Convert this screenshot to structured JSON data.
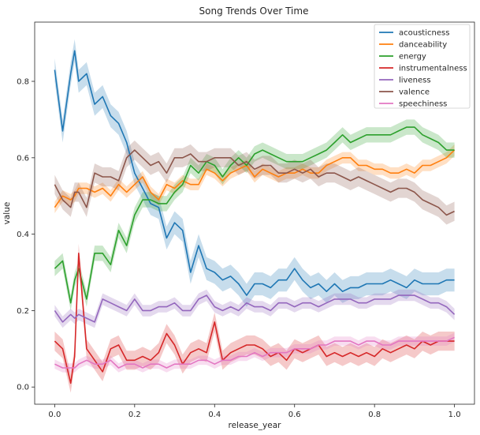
{
  "chart_data": {
    "type": "line",
    "title": "Song Trends Over Time",
    "xlabel": "release_year",
    "ylabel": "value",
    "xlim": [
      -0.05,
      1.05
    ],
    "ylim": [
      -0.045,
      0.955
    ],
    "xticks": [
      "0.0",
      "0.2",
      "0.4",
      "0.6",
      "0.8",
      "1.0"
    ],
    "yticks": [
      "0.0",
      "0.2",
      "0.4",
      "0.6",
      "0.8"
    ],
    "legend_position": "top-right",
    "grid": false,
    "x": [
      0.0,
      0.02,
      0.04,
      0.05,
      0.06,
      0.08,
      0.1,
      0.12,
      0.14,
      0.16,
      0.18,
      0.2,
      0.22,
      0.24,
      0.26,
      0.28,
      0.3,
      0.32,
      0.34,
      0.36,
      0.38,
      0.4,
      0.42,
      0.44,
      0.46,
      0.48,
      0.5,
      0.52,
      0.54,
      0.56,
      0.58,
      0.6,
      0.62,
      0.64,
      0.66,
      0.68,
      0.7,
      0.72,
      0.74,
      0.76,
      0.78,
      0.8,
      0.82,
      0.84,
      0.86,
      0.88,
      0.9,
      0.92,
      0.94,
      0.96,
      0.98,
      1.0
    ],
    "series": [
      {
        "name": "acousticness",
        "color": "#1f77b4",
        "band": 0.03,
        "values": [
          0.83,
          0.67,
          0.82,
          0.88,
          0.8,
          0.82,
          0.74,
          0.76,
          0.71,
          0.69,
          0.64,
          0.56,
          0.52,
          0.48,
          0.47,
          0.39,
          0.43,
          0.41,
          0.3,
          0.37,
          0.31,
          0.3,
          0.28,
          0.29,
          0.27,
          0.24,
          0.27,
          0.27,
          0.26,
          0.28,
          0.28,
          0.31,
          0.28,
          0.26,
          0.27,
          0.25,
          0.27,
          0.25,
          0.26,
          0.26,
          0.27,
          0.27,
          0.27,
          0.28,
          0.27,
          0.26,
          0.28,
          0.27,
          0.27,
          0.27,
          0.28,
          0.28
        ]
      },
      {
        "name": "danceability",
        "color": "#ff7f0e",
        "band": 0.015,
        "values": [
          0.47,
          0.5,
          0.49,
          0.5,
          0.52,
          0.52,
          0.51,
          0.52,
          0.5,
          0.53,
          0.51,
          0.53,
          0.55,
          0.51,
          0.49,
          0.53,
          0.52,
          0.54,
          0.53,
          0.53,
          0.57,
          0.56,
          0.54,
          0.56,
          0.57,
          0.58,
          0.55,
          0.57,
          0.56,
          0.55,
          0.56,
          0.56,
          0.57,
          0.56,
          0.56,
          0.58,
          0.59,
          0.6,
          0.6,
          0.58,
          0.58,
          0.57,
          0.57,
          0.56,
          0.56,
          0.57,
          0.56,
          0.58,
          0.58,
          0.59,
          0.6,
          0.62
        ]
      },
      {
        "name": "energy",
        "color": "#2ca02c",
        "band": 0.02,
        "values": [
          0.31,
          0.33,
          0.22,
          0.28,
          0.31,
          0.23,
          0.35,
          0.35,
          0.32,
          0.41,
          0.37,
          0.45,
          0.49,
          0.49,
          0.48,
          0.48,
          0.51,
          0.53,
          0.58,
          0.56,
          0.59,
          0.58,
          0.55,
          0.58,
          0.6,
          0.58,
          0.61,
          0.62,
          0.61,
          0.6,
          0.59,
          0.59,
          0.59,
          0.6,
          0.61,
          0.62,
          0.64,
          0.66,
          0.64,
          0.65,
          0.66,
          0.66,
          0.66,
          0.66,
          0.67,
          0.68,
          0.68,
          0.66,
          0.65,
          0.64,
          0.62,
          0.62
        ]
      },
      {
        "name": "instrumentalness",
        "color": "#d62728",
        "band": 0.025,
        "values": [
          0.12,
          0.1,
          0.01,
          0.08,
          0.35,
          0.1,
          0.07,
          0.04,
          0.1,
          0.11,
          0.07,
          0.07,
          0.08,
          0.07,
          0.09,
          0.14,
          0.11,
          0.06,
          0.09,
          0.1,
          0.09,
          0.17,
          0.07,
          0.09,
          0.1,
          0.11,
          0.11,
          0.1,
          0.08,
          0.09,
          0.07,
          0.1,
          0.09,
          0.1,
          0.11,
          0.08,
          0.09,
          0.08,
          0.09,
          0.08,
          0.09,
          0.08,
          0.1,
          0.09,
          0.1,
          0.11,
          0.1,
          0.12,
          0.11,
          0.12,
          0.12,
          0.12
        ]
      },
      {
        "name": "liveness",
        "color": "#9467bd",
        "band": 0.015,
        "values": [
          0.2,
          0.17,
          0.19,
          0.18,
          0.19,
          0.18,
          0.17,
          0.23,
          0.22,
          0.21,
          0.2,
          0.23,
          0.2,
          0.2,
          0.21,
          0.21,
          0.22,
          0.2,
          0.2,
          0.23,
          0.24,
          0.21,
          0.2,
          0.21,
          0.2,
          0.22,
          0.21,
          0.21,
          0.2,
          0.22,
          0.22,
          0.21,
          0.22,
          0.22,
          0.21,
          0.22,
          0.23,
          0.23,
          0.23,
          0.22,
          0.22,
          0.23,
          0.23,
          0.23,
          0.24,
          0.24,
          0.24,
          0.23,
          0.22,
          0.22,
          0.21,
          0.19
        ]
      },
      {
        "name": "valence",
        "color": "#8c564b",
        "band": 0.025,
        "values": [
          0.53,
          0.49,
          0.47,
          0.51,
          0.51,
          0.47,
          0.56,
          0.55,
          0.55,
          0.54,
          0.6,
          0.62,
          0.6,
          0.58,
          0.59,
          0.56,
          0.6,
          0.6,
          0.61,
          0.59,
          0.59,
          0.6,
          0.6,
          0.6,
          0.58,
          0.59,
          0.57,
          0.58,
          0.58,
          0.56,
          0.56,
          0.57,
          0.56,
          0.57,
          0.55,
          0.56,
          0.56,
          0.55,
          0.54,
          0.55,
          0.54,
          0.53,
          0.52,
          0.51,
          0.52,
          0.52,
          0.51,
          0.49,
          0.48,
          0.47,
          0.45,
          0.46
        ]
      },
      {
        "name": "speechiness",
        "color": "#e377c2",
        "band": 0.012,
        "values": [
          0.06,
          0.05,
          0.05,
          0.05,
          0.06,
          0.07,
          0.06,
          0.06,
          0.07,
          0.05,
          0.06,
          0.06,
          0.05,
          0.06,
          0.06,
          0.05,
          0.06,
          0.06,
          0.06,
          0.07,
          0.07,
          0.06,
          0.07,
          0.07,
          0.08,
          0.08,
          0.09,
          0.08,
          0.09,
          0.09,
          0.09,
          0.1,
          0.1,
          0.1,
          0.11,
          0.11,
          0.12,
          0.12,
          0.12,
          0.11,
          0.12,
          0.12,
          0.11,
          0.11,
          0.12,
          0.12,
          0.12,
          0.12,
          0.12,
          0.12,
          0.12,
          0.13
        ]
      }
    ]
  }
}
